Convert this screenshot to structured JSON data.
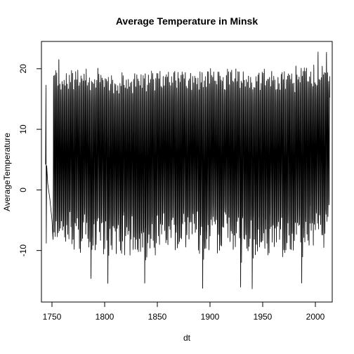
{
  "chart_data": {
    "type": "line",
    "title": "Average Temperature in Minsk",
    "xlabel": "dt",
    "ylabel": "AverageTemperature",
    "xlim": [
      1740,
      2016
    ],
    "ylim": [
      -18.5,
      24.5
    ],
    "x_ticks": [
      1750,
      1800,
      1850,
      1900,
      1950,
      2000
    ],
    "x_tick_labels": [
      "1750",
      "1800",
      "1850",
      "1900",
      "1950",
      "2000"
    ],
    "y_ticks": [
      -10,
      0,
      10,
      20
    ],
    "y_tick_labels": [
      "-10",
      "0",
      "10",
      "20"
    ],
    "grid": false,
    "legend": "none",
    "series": [
      {
        "name": "AverageTemperature",
        "color": "#000000",
        "description": "monthly series 1743-2013, seasonal oscillation",
        "x_start": 1743.9,
        "x_end": 2013.7,
        "early_points": [
          {
            "x": 1743.9,
            "y": 4.2
          },
          {
            "x": 1744.3,
            "y": 17.3
          },
          {
            "x": 1744.6,
            "y": -8.8
          },
          {
            "x": 1745.0,
            "y": 4.0
          },
          {
            "x": 1746.0,
            "y": 1.0
          },
          {
            "x": 1748.0,
            "y": -1.5
          },
          {
            "x": 1750.0,
            "y": -5.0
          }
        ],
        "annual_maxima": [
          {
            "x": 1752,
            "y": 19.0
          },
          {
            "x": 1756,
            "y": 22.0
          },
          {
            "x": 1830,
            "y": 19.5
          },
          {
            "x": 2002,
            "y": 22.5
          },
          {
            "x": 2010,
            "y": 22.8
          }
        ],
        "annual_minima": [
          {
            "x": 1787,
            "y": -14.5
          },
          {
            "x": 1803,
            "y": -16.0
          },
          {
            "x": 1838,
            "y": -16.2
          },
          {
            "x": 1893,
            "y": -16.9
          },
          {
            "x": 1929,
            "y": -16.8
          },
          {
            "x": 1940,
            "y": -16.9
          },
          {
            "x": 1987,
            "y": -16.5
          }
        ],
        "typical_summer_peak": 18.0,
        "typical_winter_trough": -6.0
      }
    ]
  }
}
